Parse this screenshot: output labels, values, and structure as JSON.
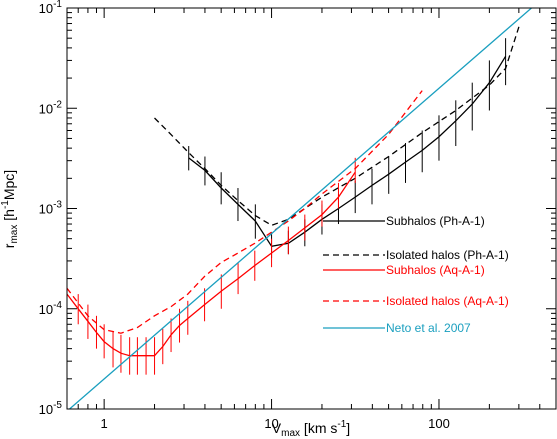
{
  "chart_data": {
    "type": "line",
    "xscale": "log",
    "yscale": "log",
    "xlim": [
      0.6,
      500
    ],
    "ylim": [
      1e-05,
      0.1
    ],
    "xlabel": {
      "base": "V",
      "sub": "max",
      "unit_pre": " [km s",
      "unit_sup": "-1",
      "unit_post": "]"
    },
    "ylabel": {
      "base": "r",
      "sub": "max",
      "unit_pre": " [h",
      "unit_sup": "-1",
      "unit_post": "Mpc]"
    },
    "x_ticks": [
      {
        "value": 1,
        "label": "1"
      },
      {
        "value": 10,
        "label": "10"
      },
      {
        "value": 100,
        "label": "100"
      }
    ],
    "y_ticks": [
      {
        "value": 1e-05,
        "mant": "10",
        "exp": "-5"
      },
      {
        "value": 0.0001,
        "mant": "10",
        "exp": "-4"
      },
      {
        "value": 0.001,
        "mant": "10",
        "exp": "-3"
      },
      {
        "value": 0.01,
        "mant": "10",
        "exp": "-2"
      },
      {
        "value": 0.1,
        "mant": "10",
        "exp": "-1"
      }
    ],
    "legend_position": "center-right",
    "series": [
      {
        "name": "Subhalos (Ph-A-1)",
        "color": "#000000",
        "dash": "solid",
        "error_bars": true,
        "x": [
          3.2,
          4.0,
          5.0,
          6.3,
          8.0,
          10.0,
          12.6,
          15.8,
          20.0,
          25.1,
          31.6,
          39.8,
          50.1,
          63.1,
          79.4,
          100,
          126,
          158,
          200,
          250
        ],
        "y": [
          0.0032,
          0.0024,
          0.0016,
          0.0011,
          0.00075,
          0.00042,
          0.00045,
          0.00058,
          0.00078,
          0.001,
          0.0013,
          0.0017,
          0.0022,
          0.0029,
          0.0038,
          0.0052,
          0.0075,
          0.011,
          0.018,
          0.033
        ],
        "err_lo": [
          0.0024,
          0.0017,
          0.0011,
          0.00075,
          0.0005,
          0.00032,
          0.00035,
          0.00042,
          0.00055,
          0.0007,
          0.0009,
          0.0011,
          0.0014,
          0.0018,
          0.0023,
          0.003,
          0.0042,
          0.006,
          0.0095,
          0.017
        ],
        "err_hi": [
          0.0042,
          0.0033,
          0.0023,
          0.0016,
          0.0011,
          0.00058,
          0.0006,
          0.00078,
          0.0011,
          0.0014,
          0.0019,
          0.0025,
          0.0033,
          0.0045,
          0.006,
          0.0085,
          0.012,
          0.018,
          0.03,
          0.05
        ]
      },
      {
        "name": "Isolated halos (Ph-A-1)",
        "color": "#000000",
        "dash": "dashed",
        "error_bars": false,
        "x": [
          2.0,
          2.5,
          3.2,
          4.0,
          5.0,
          6.3,
          8.0,
          10.0,
          12.6,
          15.8,
          20.0,
          31.6,
          50.1,
          79.4,
          126,
          200,
          250,
          300
        ],
        "y": [
          0.008,
          0.0055,
          0.0036,
          0.0025,
          0.0017,
          0.0012,
          0.00085,
          0.00068,
          0.00078,
          0.001,
          0.0013,
          0.002,
          0.0033,
          0.0057,
          0.0095,
          0.017,
          0.025,
          0.065
        ]
      },
      {
        "name": "Subhalos (Aq-A-1)",
        "color": "#ff0000",
        "dash": "solid",
        "error_bars": true,
        "x": [
          0.6,
          0.7,
          0.8,
          0.9,
          1.0,
          1.13,
          1.26,
          1.42,
          1.58,
          1.78,
          2.0,
          2.24,
          2.51,
          2.82,
          3.16,
          3.98,
          5.01,
          6.31,
          7.94,
          10.0,
          12.6,
          15.8,
          20.0,
          25.1,
          31.6
        ],
        "y": [
          0.00014,
          0.0001,
          7.5e-05,
          5.8e-05,
          4.7e-05,
          4e-05,
          3.6e-05,
          3.4e-05,
          3.4e-05,
          3.4e-05,
          3.4e-05,
          4.2e-05,
          5.5e-05,
          6.8e-05,
          8e-05,
          0.00011,
          0.00015,
          0.0002,
          0.00027,
          0.00036,
          0.00048,
          0.00064,
          0.00087,
          0.0013,
          0.0023
        ],
        "err_lo": [
          0.0001,
          7e-05,
          5e-05,
          4e-05,
          3.2e-05,
          2.6e-05,
          2.3e-05,
          2.2e-05,
          2.2e-05,
          2.2e-05,
          2.2e-05,
          2.8e-05,
          3.7e-05,
          4.6e-05,
          5.5e-05,
          7.5e-05,
          0.0001,
          0.00014,
          0.00019,
          0.00026,
          0.00035,
          0.00048,
          0.00066,
          0.001,
          0.0018
        ],
        "err_hi": [
          0.0002,
          0.00014,
          0.00011,
          8.5e-05,
          7e-05,
          6e-05,
          5.5e-05,
          5.2e-05,
          5.2e-05,
          5.2e-05,
          5.2e-05,
          6.3e-05,
          8e-05,
          0.0001,
          0.00012,
          0.00016,
          0.00022,
          0.00029,
          0.00038,
          0.0005,
          0.00066,
          0.00087,
          0.0012,
          0.0018,
          0.0032
        ]
      },
      {
        "name": "Isolated halos (Aq-A-1)",
        "color": "#ff0000",
        "dash": "dashed",
        "error_bars": false,
        "x": [
          0.6,
          0.8,
          1.0,
          1.26,
          1.58,
          2.0,
          2.51,
          3.16,
          3.98,
          5.01,
          6.31,
          7.94,
          10.0,
          12.6,
          15.8,
          20.0,
          31.6,
          50.1,
          79.4
        ],
        "y": [
          0.00016,
          8.5e-05,
          6.2e-05,
          5.7e-05,
          6.5e-05,
          8.5e-05,
          0.000105,
          0.00014,
          0.00021,
          0.00029,
          0.00036,
          0.00045,
          0.00058,
          0.00075,
          0.001,
          0.0014,
          0.0025,
          0.0055,
          0.015
        ]
      },
      {
        "name": "Neto et al. 2007",
        "color": "#1a9fbf",
        "dash": "solid",
        "error_bars": false,
        "x": [
          0.6,
          450
        ],
        "y": [
          9.5e-06,
          0.14
        ]
      }
    ]
  }
}
